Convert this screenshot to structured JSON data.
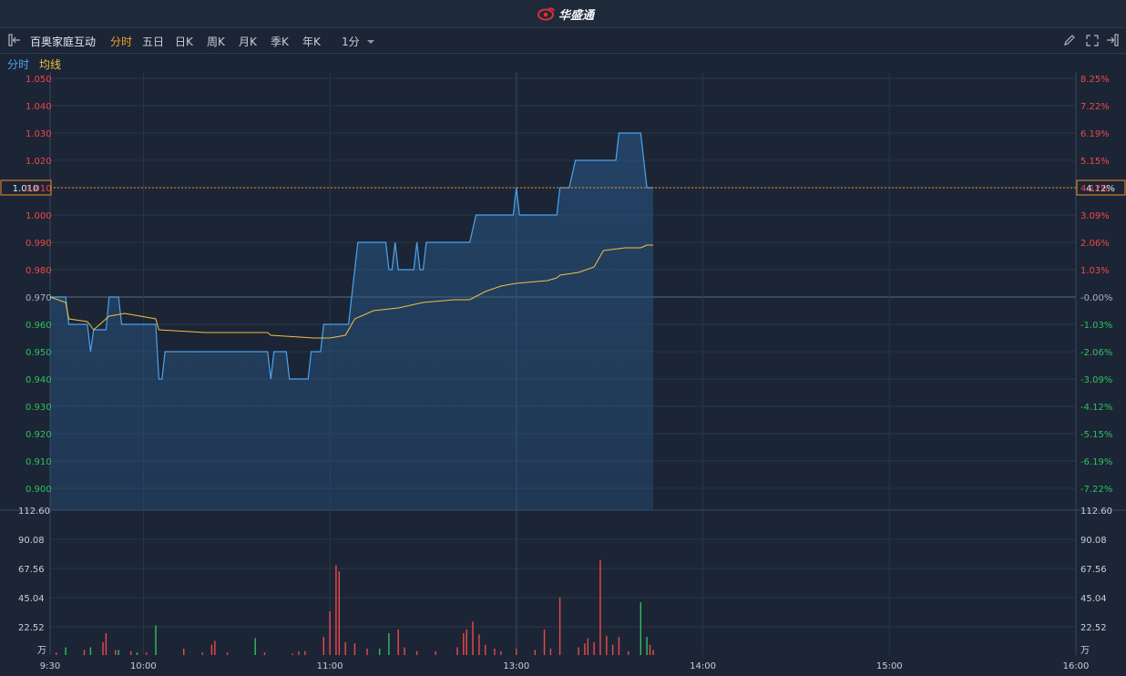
{
  "app": {
    "brand": "华盛通"
  },
  "toolbar": {
    "stock_name": "百奥家庭互动",
    "periods": [
      "分时",
      "五日",
      "日K",
      "周K",
      "月K",
      "季K",
      "年K"
    ],
    "active_period": "分时",
    "interval": "1分"
  },
  "legend": {
    "items": [
      "分时",
      "均线"
    ]
  },
  "colors": {
    "price": "#4aa3f0",
    "avg": "#f0c040",
    "up": "#f04848",
    "down": "#30c060",
    "crosshair": "#f08c2a"
  },
  "crosshair": {
    "price": "1.010",
    "pct": "4.12%"
  },
  "chart_data": {
    "type": "line",
    "prev_close": 0.97,
    "price_axis": {
      "left_ticks": [
        "1.050",
        "1.040",
        "1.030",
        "1.020",
        "1.010",
        "1.000",
        "0.990",
        "0.980",
        "0.970",
        "0.960",
        "0.950",
        "0.940",
        "0.930",
        "0.920",
        "0.910",
        "0.900"
      ],
      "right_ticks": [
        "8.25%",
        "7.22%",
        "6.19%",
        "5.15%",
        "4.12%",
        "3.09%",
        "2.06%",
        "1.03%",
        "-0.00%",
        "-1.03%",
        "-2.06%",
        "-3.09%",
        "-4.12%",
        "-5.15%",
        "-6.19%",
        "-7.22%"
      ]
    },
    "volume_axis": {
      "ticks": [
        "112.60",
        "90.08",
        "67.56",
        "45.04",
        "22.52"
      ],
      "unit": "万",
      "max": 112.6
    },
    "x_ticks": [
      "9:30",
      "10:00",
      "11:00",
      "13:00",
      "14:00",
      "15:00",
      "16:00"
    ],
    "price_series": [
      [
        0,
        0.97
      ],
      [
        5,
        0.97
      ],
      [
        6,
        0.96
      ],
      [
        12,
        0.96
      ],
      [
        13,
        0.95
      ],
      [
        14,
        0.958
      ],
      [
        18,
        0.958
      ],
      [
        19,
        0.97
      ],
      [
        22,
        0.97
      ],
      [
        23,
        0.96
      ],
      [
        34,
        0.96
      ],
      [
        35,
        0.94
      ],
      [
        36,
        0.94
      ],
      [
        37,
        0.95
      ],
      [
        70,
        0.95
      ],
      [
        71,
        0.94
      ],
      [
        72,
        0.95
      ],
      [
        76,
        0.95
      ],
      [
        77,
        0.94
      ],
      [
        83,
        0.94
      ],
      [
        84,
        0.95
      ],
      [
        87,
        0.95
      ],
      [
        88,
        0.96
      ],
      [
        96,
        0.96
      ],
      [
        98,
        0.98
      ],
      [
        99,
        0.99
      ],
      [
        108,
        0.99
      ],
      [
        109,
        0.98
      ],
      [
        110,
        0.98
      ],
      [
        111,
        0.99
      ],
      [
        112,
        0.98
      ],
      [
        117,
        0.98
      ],
      [
        118,
        0.99
      ],
      [
        119,
        0.98
      ],
      [
        120,
        0.98
      ],
      [
        121,
        0.99
      ],
      [
        135,
        0.99
      ],
      [
        137,
        1.0
      ],
      [
        149,
        1.0
      ],
      [
        150,
        1.01
      ],
      [
        151,
        1.0
      ],
      [
        163,
        1.0
      ],
      [
        164,
        1.01
      ],
      [
        167,
        1.01
      ],
      [
        169,
        1.02
      ],
      [
        182,
        1.02
      ],
      [
        183,
        1.03
      ],
      [
        190,
        1.03
      ],
      [
        192,
        1.01
      ],
      [
        194,
        1.01
      ]
    ],
    "avg_series": [
      [
        0,
        0.97
      ],
      [
        5,
        0.968
      ],
      [
        6,
        0.962
      ],
      [
        12,
        0.961
      ],
      [
        14,
        0.958
      ],
      [
        19,
        0.963
      ],
      [
        24,
        0.964
      ],
      [
        34,
        0.962
      ],
      [
        35,
        0.958
      ],
      [
        50,
        0.957
      ],
      [
        70,
        0.957
      ],
      [
        71,
        0.956
      ],
      [
        85,
        0.955
      ],
      [
        90,
        0.955
      ],
      [
        95,
        0.956
      ],
      [
        98,
        0.962
      ],
      [
        104,
        0.965
      ],
      [
        112,
        0.966
      ],
      [
        120,
        0.968
      ],
      [
        130,
        0.969
      ],
      [
        135,
        0.969
      ],
      [
        140,
        0.972
      ],
      [
        145,
        0.974
      ],
      [
        150,
        0.975
      ],
      [
        160,
        0.976
      ],
      [
        163,
        0.977
      ],
      [
        164,
        0.978
      ],
      [
        170,
        0.979
      ],
      [
        175,
        0.981
      ],
      [
        178,
        0.987
      ],
      [
        185,
        0.988
      ],
      [
        190,
        0.988
      ],
      [
        192,
        0.989
      ],
      [
        194,
        0.989
      ]
    ],
    "volume_bars": [
      [
        2,
        2,
        "up"
      ],
      [
        5,
        6,
        "down"
      ],
      [
        11,
        4,
        "up"
      ],
      [
        13,
        6,
        "down"
      ],
      [
        17,
        10,
        "up"
      ],
      [
        18,
        17,
        "up"
      ],
      [
        21,
        4,
        "up"
      ],
      [
        22,
        4,
        "down"
      ],
      [
        26,
        3,
        "up"
      ],
      [
        28,
        2,
        "down"
      ],
      [
        31,
        2,
        "up"
      ],
      [
        34,
        23,
        "down"
      ],
      [
        43,
        5,
        "up"
      ],
      [
        49,
        2,
        "up"
      ],
      [
        52,
        8,
        "up"
      ],
      [
        53,
        11,
        "up"
      ],
      [
        57,
        2,
        "up"
      ],
      [
        66,
        13,
        "down"
      ],
      [
        69,
        2,
        "up"
      ],
      [
        78,
        1,
        "up"
      ],
      [
        80,
        3,
        "up"
      ],
      [
        82,
        3,
        "up"
      ],
      [
        88,
        14,
        "up"
      ],
      [
        90,
        34,
        "up"
      ],
      [
        92,
        70,
        "up"
      ],
      [
        93,
        65,
        "up"
      ],
      [
        95,
        10,
        "up"
      ],
      [
        98,
        9,
        "up"
      ],
      [
        102,
        5,
        "up"
      ],
      [
        106,
        5,
        "down"
      ],
      [
        109,
        17,
        "down"
      ],
      [
        112,
        20,
        "up"
      ],
      [
        114,
        6,
        "up"
      ],
      [
        118,
        3,
        "up"
      ],
      [
        124,
        3,
        "up"
      ],
      [
        131,
        6,
        "up"
      ],
      [
        133,
        17,
        "up"
      ],
      [
        134,
        20,
        "up"
      ],
      [
        136,
        26,
        "up"
      ],
      [
        138,
        16,
        "up"
      ],
      [
        140,
        8,
        "up"
      ],
      [
        143,
        5,
        "up"
      ],
      [
        145,
        3,
        "up"
      ],
      [
        150,
        5,
        "up"
      ],
      [
        156,
        4,
        "up"
      ],
      [
        159,
        20,
        "up"
      ],
      [
        161,
        5,
        "up"
      ],
      [
        164,
        45,
        "up"
      ],
      [
        170,
        6,
        "up"
      ],
      [
        172,
        9,
        "up"
      ],
      [
        173,
        13,
        "up"
      ],
      [
        175,
        10,
        "up"
      ],
      [
        177,
        74,
        "up"
      ],
      [
        179,
        15,
        "up"
      ],
      [
        181,
        8,
        "up"
      ],
      [
        183,
        14,
        "up"
      ],
      [
        186,
        3,
        "up"
      ],
      [
        190,
        41,
        "down"
      ],
      [
        192,
        14,
        "down"
      ],
      [
        193,
        8,
        "up"
      ],
      [
        194,
        4,
        "up"
      ]
    ]
  }
}
